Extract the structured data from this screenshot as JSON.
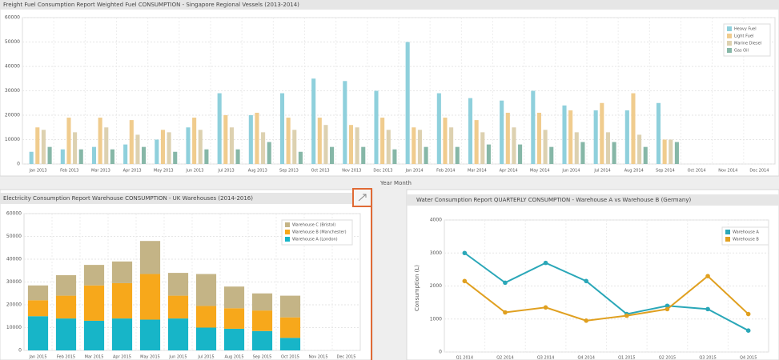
{
  "chart_data": [
    {
      "type": "bar",
      "title": "Freight Fuel Consumption Report Weighted Fuel CONSUMPTION - Singapore Regional Vessels (2013-2014)",
      "x_label": "Year Month",
      "categories": [
        "Jan 2013",
        "Feb 2013",
        "Mar 2013",
        "Apr 2013",
        "May 2013",
        "Jun 2013",
        "Jul 2013",
        "Aug 2013",
        "Sep 2013",
        "Oct 2013",
        "Nov 2013",
        "Dec 2013",
        "Jan 2014",
        "Feb 2014",
        "Mar 2014",
        "Apr 2014",
        "May 2014",
        "Jun 2014",
        "Jul 2014",
        "Aug 2014",
        "Sep 2014",
        "Oct 2014",
        "Nov 2014",
        "Dec 2014"
      ],
      "series": [
        {
          "name": "Heavy Fuel",
          "color": "#8fd0dc",
          "values": [
            5000,
            6000,
            7000,
            8000,
            10000,
            15000,
            29000,
            20000,
            29000,
            35000,
            34000,
            30000,
            50000,
            29000,
            27000,
            26000,
            30000,
            24000,
            22000,
            22000,
            25000,
            null,
            null,
            null
          ]
        },
        {
          "name": "Light Fuel",
          "color": "#f0cc8e",
          "values": [
            15000,
            19000,
            19000,
            18000,
            14000,
            19000,
            20000,
            21000,
            19000,
            19000,
            16000,
            19000,
            15000,
            19000,
            18000,
            21000,
            21000,
            22000,
            25000,
            29000,
            10000,
            null,
            null,
            null
          ]
        },
        {
          "name": "Marine Diesel",
          "color": "#ddd1b0",
          "values": [
            14000,
            13000,
            15000,
            12000,
            13000,
            14000,
            15000,
            13000,
            14000,
            16000,
            15000,
            14000,
            14000,
            15000,
            13000,
            15000,
            14000,
            13000,
            13000,
            12000,
            10000,
            null,
            null,
            null
          ]
        },
        {
          "name": "Gas Oil",
          "color": "#86b7a7",
          "values": [
            7000,
            6000,
            6000,
            7000,
            5000,
            6000,
            6000,
            9000,
            5000,
            7000,
            7000,
            6000,
            7000,
            7000,
            8000,
            8000,
            7000,
            9000,
            9000,
            7000,
            9000,
            null,
            null,
            null
          ]
        }
      ],
      "ylim": [
        0,
        60000
      ],
      "yticks": [
        0,
        10000,
        20000,
        30000,
        40000,
        50000,
        60000
      ],
      "grid": true,
      "legend": "top-right"
    },
    {
      "type": "bar",
      "stacked": true,
      "title": "Electricity Consumption Report Warehouse CONSUMPTION - UK Warehouses (2014-2016)",
      "categories": [
        "Jan 2015",
        "Feb 2015",
        "Mar 2015",
        "Apr 2015",
        "May 2015",
        "Jun 2015",
        "Jul 2015",
        "Aug 2015",
        "Sep 2015",
        "Oct 2015",
        "Nov 2015",
        "Dec 2015"
      ],
      "series": [
        {
          "name": "Warehouse A (London)",
          "color": "#17b5c8",
          "values": [
            15000,
            14000,
            13000,
            14000,
            13500,
            14000,
            10000,
            9500,
            8500,
            5500,
            null,
            null
          ]
        },
        {
          "name": "Warehouse B (Manchester)",
          "color": "#f7a81b",
          "values": [
            7000,
            10000,
            15500,
            15500,
            20000,
            10000,
            9500,
            9000,
            9000,
            9000,
            null,
            null
          ]
        },
        {
          "name": "Warehouse C (Bristol)",
          "color": "#c4b486",
          "values": [
            6500,
            9000,
            9000,
            9500,
            14500,
            10000,
            14000,
            9500,
            7500,
            9500,
            null,
            null
          ]
        }
      ],
      "ylim": [
        0,
        60000
      ],
      "yticks": [
        0,
        10000,
        20000,
        30000,
        40000,
        50000,
        60000
      ],
      "grid": true,
      "legend": "top-right"
    },
    {
      "type": "line",
      "title": "Water Consumption Report QUARTERLY CONSUMPTION - Warehouse A vs Warehouse B (Germany)",
      "y_label": "Consumption (L)",
      "categories": [
        "Q1 2014",
        "Q2 2014",
        "Q3 2014",
        "Q4 2014",
        "Q1 2015",
        "Q2 2015",
        "Q3 2015",
        "Q4 2015"
      ],
      "series": [
        {
          "name": "Warehouse A",
          "color": "#2aa7b8",
          "values": [
            3000,
            2100,
            2700,
            2150,
            1150,
            1400,
            1300,
            650
          ]
        },
        {
          "name": "Warehouse B",
          "color": "#e0a020",
          "values": [
            2150,
            1200,
            1350,
            950,
            1100,
            1300,
            2300,
            1150
          ]
        }
      ],
      "ylim": [
        0,
        4000
      ],
      "yticks": [
        0,
        1000,
        2000,
        3000,
        4000
      ],
      "grid": true,
      "legend": "top-right"
    }
  ]
}
